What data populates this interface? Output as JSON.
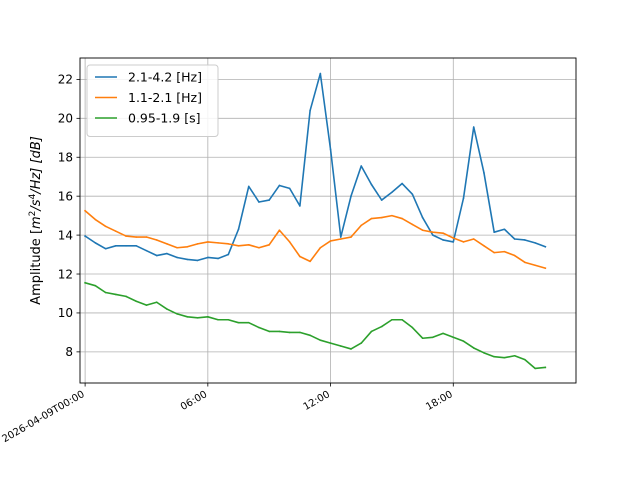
{
  "chart_data": {
    "type": "line",
    "ylabel_parts": {
      "prefix": "Amplitude [",
      "base1": "m",
      "exp1": "2",
      "mid": "/s",
      "exp2": "4",
      "suffix": "/Hz] [dB]"
    },
    "xlim": [
      -0.25,
      24.0
    ],
    "ylim": [
      6.4,
      23.1
    ],
    "yticks": [
      8,
      10,
      12,
      14,
      16,
      18,
      20,
      22
    ],
    "xticks": [
      {
        "value": 0,
        "label": "2026-04-09T00:00"
      },
      {
        "value": 6,
        "label": "06:00"
      },
      {
        "value": 12,
        "label": "12:00"
      },
      {
        "value": 18,
        "label": "18:00"
      }
    ],
    "grid": true,
    "legend_position": "top-left",
    "x": [
      0,
      0.5,
      1,
      1.5,
      2,
      2.5,
      3,
      3.5,
      4,
      4.5,
      5,
      5.5,
      6,
      6.5,
      7,
      7.5,
      8,
      8.5,
      9,
      9.5,
      10,
      10.5,
      11,
      11.5,
      12,
      12.5,
      13,
      13.5,
      14,
      14.5,
      15,
      15.5,
      16,
      16.5,
      17,
      17.5,
      18,
      18.5,
      19,
      19.5,
      20,
      20.5,
      21,
      21.5,
      22,
      22.5
    ],
    "series": [
      {
        "name": "2.1-4.2 [Hz]",
        "color": "#1f77b4",
        "values": [
          13.95,
          13.6,
          13.3,
          13.45,
          13.45,
          13.45,
          13.2,
          12.95,
          13.05,
          12.85,
          12.75,
          12.7,
          12.85,
          12.8,
          13.0,
          14.3,
          16.5,
          15.7,
          15.8,
          16.55,
          16.4,
          15.5,
          20.4,
          22.3,
          18.4,
          13.9,
          16.0,
          17.55,
          16.6,
          15.8,
          16.2,
          16.65,
          16.1,
          14.9,
          14.0,
          13.75,
          13.65,
          15.9,
          19.55,
          17.2,
          14.15,
          14.3,
          13.8,
          13.75,
          13.6,
          13.4
        ]
      },
      {
        "name": "1.1-2.1 [Hz]",
        "color": "#ff7f0e",
        "values": [
          15.25,
          14.8,
          14.45,
          14.2,
          13.95,
          13.9,
          13.9,
          13.75,
          13.55,
          13.35,
          13.4,
          13.55,
          13.65,
          13.6,
          13.55,
          13.45,
          13.5,
          13.35,
          13.5,
          14.25,
          13.65,
          12.9,
          12.65,
          13.35,
          13.7,
          13.8,
          13.9,
          14.5,
          14.85,
          14.9,
          15.0,
          14.85,
          14.55,
          14.25,
          14.15,
          14.1,
          13.85,
          13.65,
          13.8,
          13.45,
          13.1,
          13.15,
          12.95,
          12.6,
          12.45,
          12.3
        ]
      },
      {
        "name": "0.95-1.9 [s]",
        "color": "#2ca02c",
        "values": [
          11.55,
          11.4,
          11.05,
          10.95,
          10.85,
          10.6,
          10.4,
          10.55,
          10.2,
          9.95,
          9.8,
          9.75,
          9.8,
          9.65,
          9.65,
          9.5,
          9.5,
          9.25,
          9.05,
          9.05,
          9.0,
          9.0,
          8.85,
          8.6,
          8.45,
          8.3,
          8.15,
          8.45,
          9.05,
          9.3,
          9.65,
          9.65,
          9.25,
          8.7,
          8.75,
          8.95,
          8.75,
          8.55,
          8.2,
          7.95,
          7.75,
          7.7,
          7.8,
          7.6,
          7.15,
          7.2
        ]
      }
    ]
  }
}
